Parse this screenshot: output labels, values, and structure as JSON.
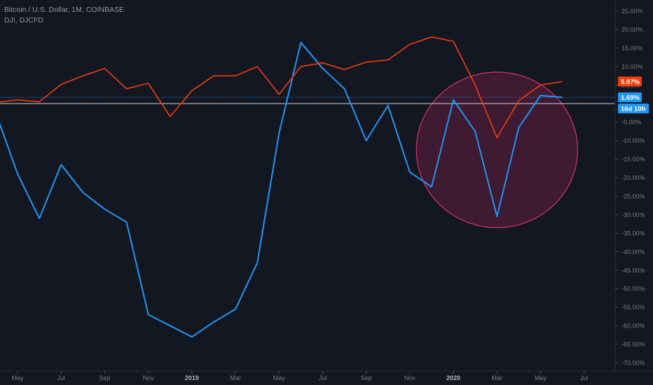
{
  "header": {
    "main_symbol": "Bitcoin / U.S. Dollar, 1M, COINBASE",
    "compare_symbol": "DJI, DJCFD"
  },
  "colors": {
    "background": "#131722",
    "btc": "#2196f3",
    "dji": "#f23d0c",
    "highlight_fill": "#5c1d3f",
    "highlight_stroke": "#d6336c",
    "axis_text": "#787b86"
  },
  "badges": {
    "dji_last": "5.97%",
    "btc_last": "1.69%",
    "countdown": "16d 10h"
  },
  "chart_data": {
    "type": "line",
    "y_unit": "%",
    "ylim": [
      -70,
      25
    ],
    "y_ticks": [
      "25.00%",
      "20.00%",
      "15.00%",
      "10.00%",
      "5.00%",
      "-5.00%",
      "-10.00%",
      "-15.00%",
      "-20.00%",
      "-25.00%",
      "-30.00%",
      "-35.00%",
      "-40.00%",
      "-45.00%",
      "-50.00%",
      "-55.00%",
      "-60.00%",
      "-65.00%",
      "-70.00%"
    ],
    "x_ticks": [
      "May",
      "Jul",
      "Sep",
      "Nov",
      "2019",
      "Mar",
      "May",
      "Jul",
      "Sep",
      "Nov",
      "2020",
      "Mar",
      "May",
      "Jul"
    ],
    "x_ticks_bold": [
      "2019",
      "2020"
    ],
    "x_months": [
      "2018-04",
      "2018-05",
      "2018-06",
      "2018-07",
      "2018-08",
      "2018-09",
      "2018-10",
      "2018-11",
      "2018-12",
      "2019-01",
      "2019-02",
      "2019-03",
      "2019-04",
      "2019-05",
      "2019-06",
      "2019-07",
      "2019-08",
      "2019-09",
      "2019-10",
      "2019-11",
      "2019-12",
      "2020-01",
      "2020-02",
      "2020-03",
      "2020-04",
      "2020-05",
      "2020-06"
    ],
    "series": [
      {
        "values": [
          -2.5,
          -19,
          -31,
          -16.5,
          -24,
          -28.5,
          -32,
          -57,
          -60,
          -63,
          -59,
          -55.5,
          -43,
          -8,
          16.5,
          9.5,
          4,
          -10,
          -0.5,
          -18.5,
          -22.5,
          1,
          -7.5,
          -30.5,
          -6.5,
          2.2,
          1.69
        ]
      },
      {
        "values": [
          0.3,
          1,
          0.5,
          5.2,
          7.5,
          9.5,
          4,
          5.5,
          -3.5,
          3.5,
          7.5,
          7.5,
          10,
          2.5,
          10,
          11,
          9.2,
          11.2,
          11.8,
          16,
          18,
          16.8,
          5,
          -9.2,
          0.8,
          5,
          5.97
        ]
      }
    ],
    "annotations": [
      {
        "shape": "ellipse",
        "x_center": "2020-03",
        "y_center": -12.5,
        "x_radius_months": 3.7,
        "y_radius": 21
      }
    ],
    "grid": false
  }
}
